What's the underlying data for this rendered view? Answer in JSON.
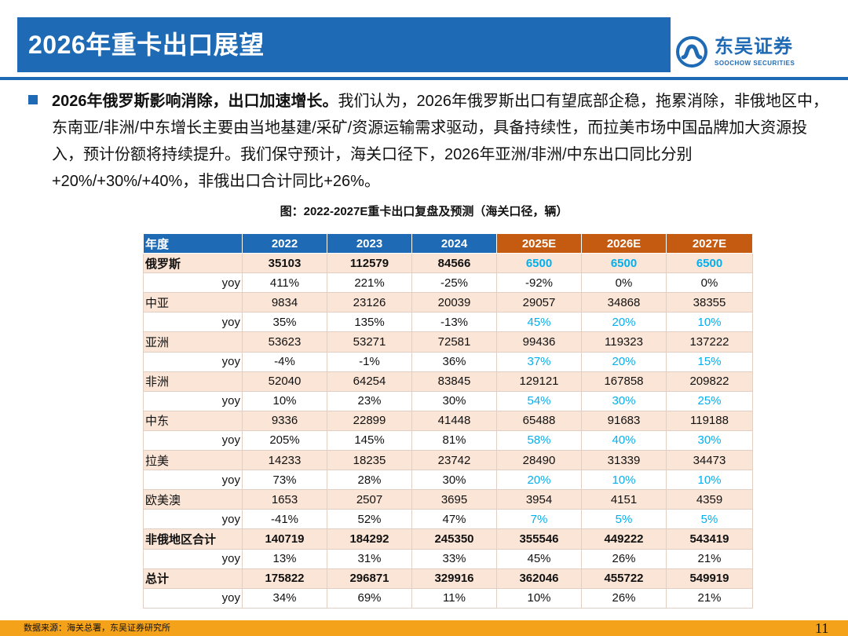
{
  "header": {
    "title": "2026年重卡出口展望",
    "logo_cn": "东吴证券",
    "logo_en": "SOOCHOW SECURITIES"
  },
  "bullet": {
    "bold": "2026年俄罗斯影响消除，出口加速增长。",
    "text": "我们认为，2026年俄罗斯出口有望底部企稳，拖累消除，非俄地区中，东南亚/非洲/中东增长主要由当地基建/采矿/资源运输需求驱动，具备持续性，而拉美市场中国品牌加大资源投入，预计份额将持续提升。我们保守预计，海关口径下，2026年亚洲/非洲/中东出口同比分别+20%/+30%/+40%，非俄出口合计同比+26%。"
  },
  "figure": {
    "caption": "图：2022-2027E重卡出口复盘及预测（海关口径，辆）"
  },
  "table": {
    "headers": [
      "年度",
      "2022",
      "2023",
      "2024",
      "2025E",
      "2026E",
      "2027E"
    ],
    "yoy_label": "yoy",
    "rows": [
      {
        "name": "俄罗斯",
        "values": [
          "35103",
          "112579",
          "84566",
          "6500",
          "6500",
          "6500"
        ],
        "yoy": [
          "411%",
          "221%",
          "-25%",
          "-92%",
          "0%",
          "0%"
        ]
      },
      {
        "name": "中亚",
        "values": [
          "9834",
          "23126",
          "20039",
          "29057",
          "34868",
          "38355"
        ],
        "yoy": [
          "35%",
          "135%",
          "-13%",
          "45%",
          "20%",
          "10%"
        ]
      },
      {
        "name": "亚洲",
        "values": [
          "53623",
          "53271",
          "72581",
          "99436",
          "119323",
          "137222"
        ],
        "yoy": [
          "-4%",
          "-1%",
          "36%",
          "37%",
          "20%",
          "15%"
        ]
      },
      {
        "name": "非洲",
        "values": [
          "52040",
          "64254",
          "83845",
          "129121",
          "167858",
          "209822"
        ],
        "yoy": [
          "10%",
          "23%",
          "30%",
          "54%",
          "30%",
          "25%"
        ]
      },
      {
        "name": "中东",
        "values": [
          "9336",
          "22899",
          "41448",
          "65488",
          "91683",
          "119188"
        ],
        "yoy": [
          "205%",
          "145%",
          "81%",
          "58%",
          "40%",
          "30%"
        ]
      },
      {
        "name": "拉美",
        "values": [
          "14233",
          "18235",
          "23742",
          "28490",
          "31339",
          "34473"
        ],
        "yoy": [
          "73%",
          "28%",
          "30%",
          "20%",
          "10%",
          "10%"
        ]
      },
      {
        "name": "欧美澳",
        "values": [
          "1653",
          "2507",
          "3695",
          "3954",
          "4151",
          "4359"
        ],
        "yoy": [
          "-41%",
          "52%",
          "47%",
          "7%",
          "5%",
          "5%"
        ]
      },
      {
        "name": "非俄地区合计",
        "values": [
          "140719",
          "184292",
          "245350",
          "355546",
          "449222",
          "543419"
        ],
        "yoy": [
          "13%",
          "31%",
          "33%",
          "45%",
          "26%",
          "21%"
        ]
      },
      {
        "name": "总计",
        "values": [
          "175822",
          "296871",
          "329916",
          "362046",
          "455722",
          "549919"
        ],
        "yoy": [
          "34%",
          "69%",
          "11%",
          "10%",
          "26%",
          "21%"
        ]
      }
    ]
  },
  "footer": {
    "source": "数据来源：海关总署，东吴证券研究所",
    "page": "11"
  },
  "colors": {
    "brand_blue": "#1f6ab4",
    "estimate_orange": "#c55a11",
    "row_peach": "#fbe5d6",
    "forecast_cyan": "#00b0f0",
    "footer_orange": "#f5a21b"
  }
}
